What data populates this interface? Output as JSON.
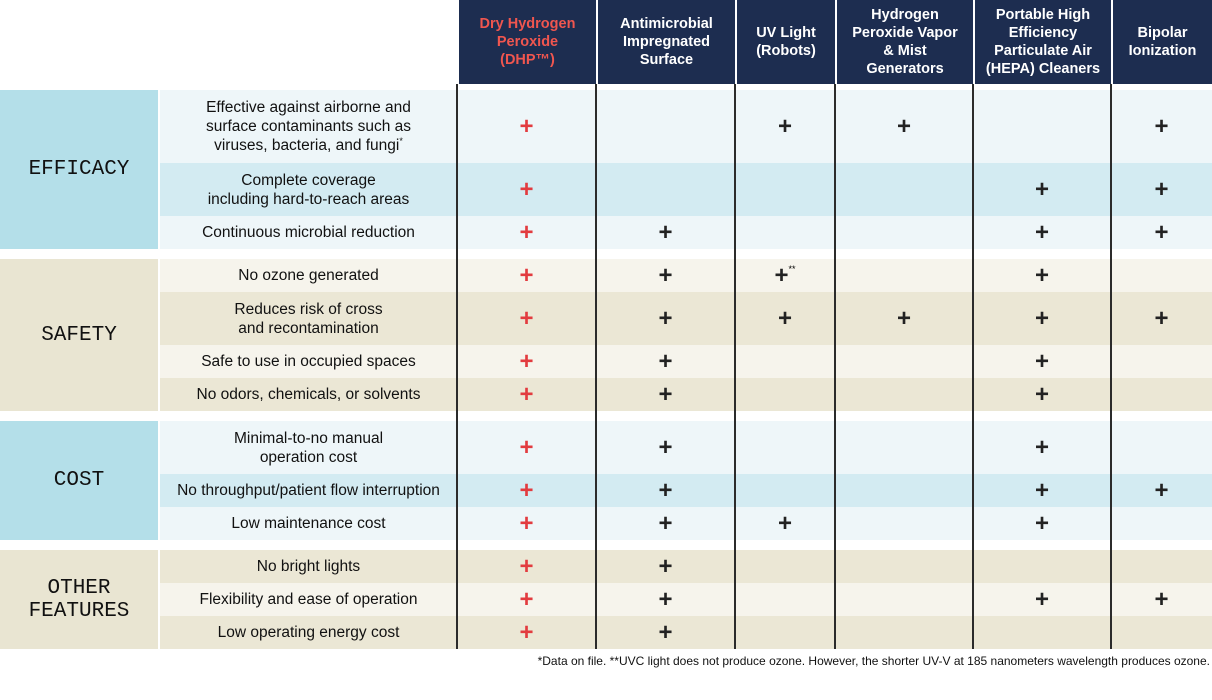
{
  "header": {
    "columns": [
      {
        "lines": [
          "Dry Hydrogen",
          "Peroxide",
          "(DHP™)"
        ]
      },
      {
        "lines": [
          "Antimicrobial",
          "Impregnated",
          "Surface"
        ]
      },
      {
        "lines": [
          "UV Light",
          "(Robots)"
        ]
      },
      {
        "lines": [
          "Hydrogen",
          "Peroxide Vapor",
          "& Mist",
          "Generators"
        ]
      },
      {
        "lines": [
          "Portable High",
          "Efficiency",
          "Particulate Air",
          "(HEPA) Cleaners"
        ]
      },
      {
        "lines": [
          "Bipolar",
          "Ionization"
        ]
      }
    ]
  },
  "groups": [
    {
      "label_lines": [
        "EFFICACY"
      ],
      "rows": [
        {
          "lines": [
            "Effective against airborne and",
            "surface contaminants such as",
            "viruses, bacteria, and fungi"
          ],
          "note": "*",
          "cells": [
            "+",
            null,
            "+",
            "+",
            null,
            "+"
          ]
        },
        {
          "lines": [
            "Complete coverage",
            "including hard-to-reach areas"
          ],
          "cells": [
            "+",
            null,
            null,
            null,
            "+",
            "+"
          ]
        },
        {
          "lines": [
            "Continuous microbial reduction"
          ],
          "cells": [
            "+",
            "+",
            null,
            null,
            "+",
            "+"
          ]
        }
      ]
    },
    {
      "label_lines": [
        "SAFETY"
      ],
      "rows": [
        {
          "lines": [
            "No ozone generated"
          ],
          "cells": [
            "+",
            "+",
            {
              "mark": "+",
              "note": "**"
            },
            null,
            "+",
            null
          ]
        },
        {
          "lines": [
            "Reduces risk of cross",
            "and recontamination"
          ],
          "cells": [
            "+",
            "+",
            "+",
            "+",
            "+",
            "+"
          ]
        },
        {
          "lines": [
            "Safe to use in occupied spaces"
          ],
          "cells": [
            "+",
            "+",
            null,
            null,
            "+",
            null
          ]
        },
        {
          "lines": [
            "No odors, chemicals, or solvents"
          ],
          "cells": [
            "+",
            "+",
            null,
            null,
            "+",
            null
          ]
        }
      ]
    },
    {
      "label_lines": [
        "COST"
      ],
      "rows": [
        {
          "lines": [
            "Minimal-to-no manual",
            "operation cost"
          ],
          "cells": [
            "+",
            "+",
            null,
            null,
            "+",
            null
          ]
        },
        {
          "lines": [
            "No throughput/patient flow interruption"
          ],
          "cells": [
            "+",
            "+",
            null,
            null,
            "+",
            "+"
          ]
        },
        {
          "lines": [
            "Low maintenance cost"
          ],
          "cells": [
            "+",
            "+",
            "+",
            null,
            "+",
            null
          ]
        }
      ]
    },
    {
      "label_lines": [
        "OTHER",
        "FEATURES"
      ],
      "rows": [
        {
          "lines": [
            "No bright lights"
          ],
          "cells": [
            "+",
            "+",
            null,
            null,
            null,
            null
          ]
        },
        {
          "lines": [
            "Flexibility and ease of operation"
          ],
          "cells": [
            "+",
            "+",
            null,
            null,
            "+",
            "+"
          ]
        },
        {
          "lines": [
            "Low operating energy cost"
          ],
          "cells": [
            "+",
            "+",
            null,
            null,
            null,
            null
          ]
        }
      ]
    }
  ],
  "footnote": "*Data on file. **UVC light does not produce ozone. However, the shorter UV-V at 185 nanometers wavelength produces ozone."
}
